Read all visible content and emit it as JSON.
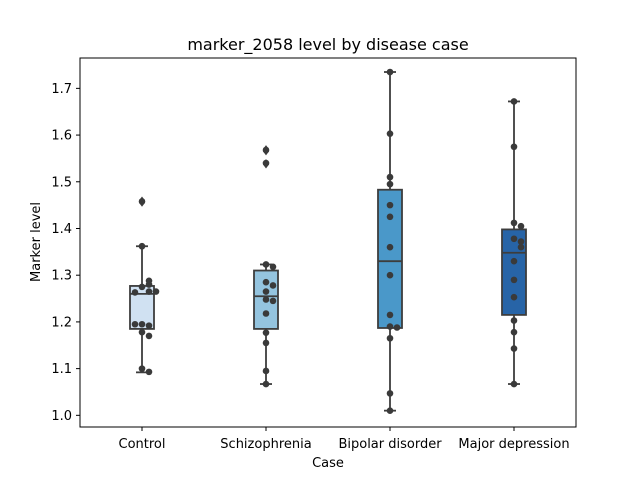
{
  "chart_data": {
    "type": "box",
    "title": "marker_2058 level by disease case",
    "xlabel": "Case",
    "ylabel": "Marker level",
    "ylim": [
      0.975,
      1.765
    ],
    "yticks": [
      1.0,
      1.1,
      1.2,
      1.3,
      1.4,
      1.5,
      1.6,
      1.7
    ],
    "grid": false,
    "categories": [
      "Control",
      "Schizophrenia",
      "Bipolar disorder",
      "Major depression"
    ],
    "colors": [
      "#d0e1f2",
      "#94c4df",
      "#4a98c9",
      "#2764a7"
    ],
    "boxes": [
      {
        "q1": 1.185,
        "median": 1.26,
        "q3": 1.277,
        "whisker_low": 1.092,
        "whisker_high": 1.362,
        "outliers": [
          1.455,
          1.46
        ]
      },
      {
        "q1": 1.185,
        "median": 1.255,
        "q3": 1.31,
        "whisker_low": 1.067,
        "whisker_high": 1.323,
        "outliers": [
          1.54,
          1.537,
          1.565,
          1.57
        ]
      },
      {
        "q1": 1.187,
        "median": 1.33,
        "q3": 1.483,
        "whisker_low": 1.01,
        "whisker_high": 1.735,
        "outliers": []
      },
      {
        "q1": 1.215,
        "median": 1.348,
        "q3": 1.398,
        "whisker_low": 1.067,
        "whisker_high": 1.672,
        "outliers": []
      }
    ],
    "points": [
      [
        1.275,
        1.265,
        1.263,
        1.28,
        1.288,
        1.265,
        1.362,
        1.195,
        1.192,
        1.195,
        1.178,
        1.17,
        1.1,
        1.093,
        1.458
      ],
      [
        1.323,
        1.318,
        1.285,
        1.278,
        1.265,
        1.248,
        1.245,
        1.218,
        1.177,
        1.155,
        1.095,
        1.067,
        1.54,
        1.568
      ],
      [
        1.735,
        1.603,
        1.51,
        1.495,
        1.45,
        1.425,
        1.36,
        1.3,
        1.215,
        1.19,
        1.188,
        1.165,
        1.047,
        1.01
      ],
      [
        1.672,
        1.575,
        1.412,
        1.405,
        1.378,
        1.372,
        1.36,
        1.33,
        1.29,
        1.253,
        1.203,
        1.178,
        1.143,
        1.067
      ]
    ]
  }
}
